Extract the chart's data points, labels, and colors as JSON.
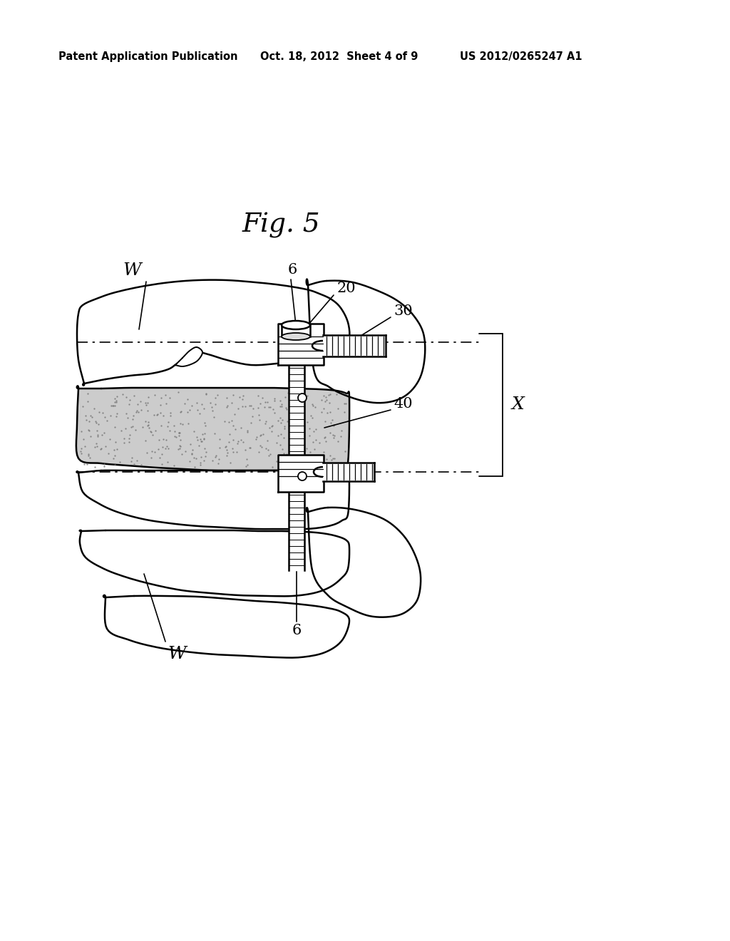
{
  "bg_color": "#ffffff",
  "line_color": "#000000",
  "fig_label": "Fig. 5",
  "header_left": "Patent Application Publication",
  "header_mid": "Oct. 18, 2012  Sheet 4 of 9",
  "header_right": "US 2012/0265247 A1",
  "label_W_top": "W",
  "label_W_bot": "W",
  "label_6_top": "6",
  "label_6_bot": "6",
  "label_20": "20",
  "label_30": "30",
  "label_40": "40",
  "label_X": "X",
  "figsize": [
    10.24,
    13.2
  ],
  "dpi": 100
}
